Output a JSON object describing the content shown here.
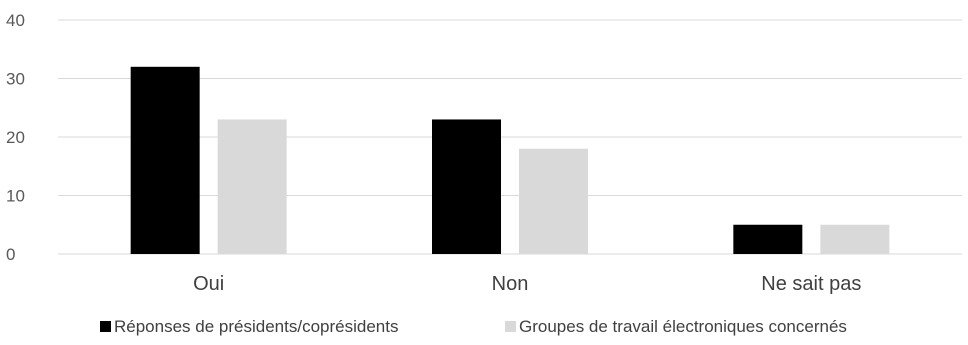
{
  "chart_data": {
    "type": "bar",
    "title": "",
    "xlabel": "",
    "ylabel": "",
    "categories": [
      "Oui",
      "Non",
      "Ne sait pas"
    ],
    "series": [
      {
        "name": "Réponses de présidents/coprésidents",
        "values": [
          32,
          23,
          5
        ],
        "color": "#000000"
      },
      {
        "name": "Groupes de travail électroniques concernés",
        "values": [
          23,
          18,
          5
        ],
        "color": "#d9d9d9"
      }
    ],
    "ylim": [
      0,
      40
    ],
    "yticks": [
      0,
      10,
      20,
      30,
      40
    ],
    "grid": true,
    "gridColor": "#d9d9d9",
    "legend_position": "bottom"
  }
}
